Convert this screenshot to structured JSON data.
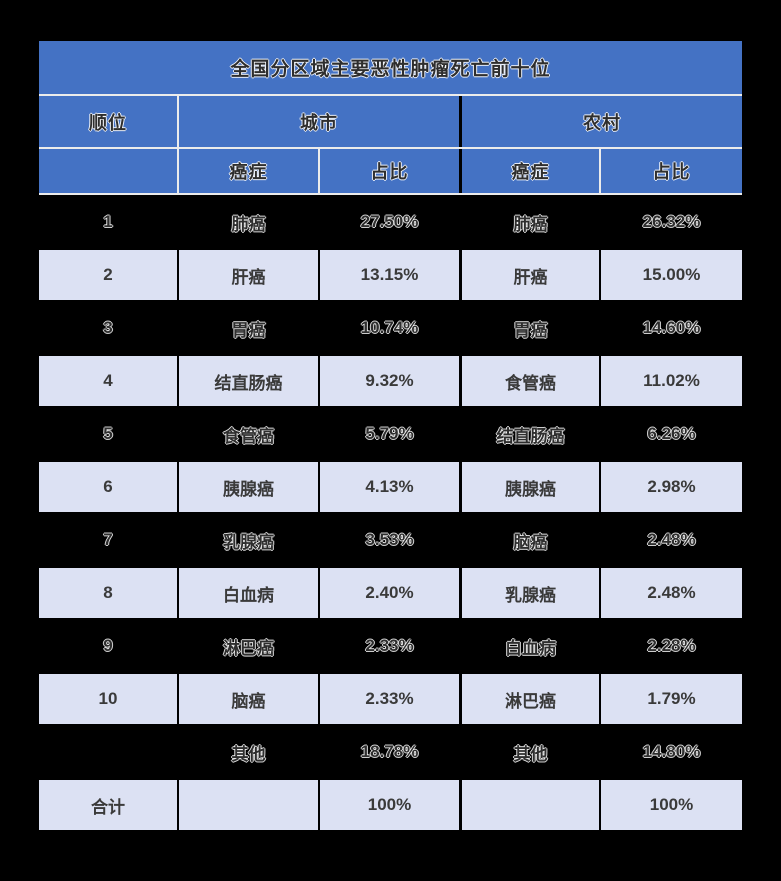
{
  "page": {
    "background": "#000000"
  },
  "table": {
    "title": "全国分区域主要恶性肿瘤死亡前十位",
    "header_row1": {
      "rank": "顺位",
      "urban": "城市",
      "rural": "农村"
    },
    "header_row2": {
      "cancer": "癌症",
      "share": "占比"
    },
    "colors": {
      "header_blue": "#4472C4",
      "row_light": "#DCE1F3",
      "row_dark": "#000000",
      "grid_light": "#ECECEC",
      "text_dark": "#3A3A3A"
    }
  },
  "chart_data": {
    "type": "table",
    "title": "全国分区域主要恶性肿瘤死亡前十位",
    "columns": [
      "顺位",
      "城市-癌症",
      "城市-占比",
      "农村-癌症",
      "农村-占比"
    ],
    "rows": [
      [
        "1",
        "肺癌",
        "27.50%",
        "肺癌",
        "26.32%"
      ],
      [
        "2",
        "肝癌",
        "13.15%",
        "肝癌",
        "15.00%"
      ],
      [
        "3",
        "胃癌",
        "10.74%",
        "胃癌",
        "14.60%"
      ],
      [
        "4",
        "结直肠癌",
        "9.32%",
        "食管癌",
        "11.02%"
      ],
      [
        "5",
        "食管癌",
        "5.79%",
        "结直肠癌",
        "6.26%"
      ],
      [
        "6",
        "胰腺癌",
        "4.13%",
        "胰腺癌",
        "2.98%"
      ],
      [
        "7",
        "乳腺癌",
        "3.53%",
        "脑癌",
        "2.48%"
      ],
      [
        "8",
        "白血病",
        "2.40%",
        "乳腺癌",
        "2.48%"
      ],
      [
        "9",
        "淋巴癌",
        "2.33%",
        "白血病",
        "2.28%"
      ],
      [
        "10",
        "脑癌",
        "2.33%",
        "淋巴癌",
        "1.79%"
      ],
      [
        "",
        "其他",
        "18.78%",
        "其他",
        "14.80%"
      ],
      [
        "合计",
        "",
        "100%",
        "",
        "100%"
      ]
    ]
  }
}
